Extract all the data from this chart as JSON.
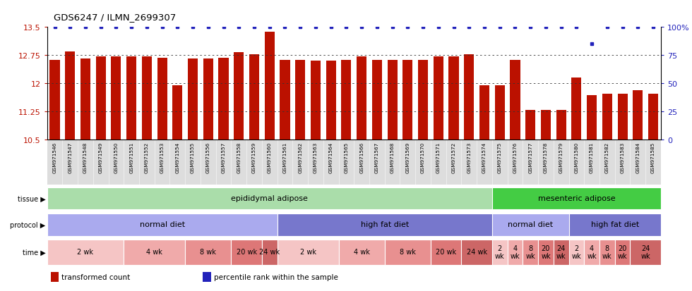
{
  "title": "GDS6247 / ILMN_2699307",
  "samples": [
    "GSM971546",
    "GSM971547",
    "GSM971548",
    "GSM971549",
    "GSM971550",
    "GSM971551",
    "GSM971552",
    "GSM971553",
    "GSM971554",
    "GSM971555",
    "GSM971556",
    "GSM971557",
    "GSM971558",
    "GSM971559",
    "GSM971560",
    "GSM971561",
    "GSM971562",
    "GSM971563",
    "GSM971564",
    "GSM971565",
    "GSM971566",
    "GSM971567",
    "GSM971568",
    "GSM971569",
    "GSM971570",
    "GSM971571",
    "GSM971572",
    "GSM971573",
    "GSM971574",
    "GSM971575",
    "GSM971576",
    "GSM971577",
    "GSM971578",
    "GSM971579",
    "GSM971580",
    "GSM971581",
    "GSM971582",
    "GSM971583",
    "GSM971584",
    "GSM971585"
  ],
  "bar_values": [
    12.62,
    12.85,
    12.65,
    12.72,
    12.72,
    12.72,
    12.72,
    12.68,
    11.95,
    12.65,
    12.65,
    12.68,
    12.82,
    12.78,
    13.37,
    12.62,
    12.62,
    12.6,
    12.6,
    12.62,
    12.72,
    12.62,
    12.62,
    12.62,
    12.62,
    12.72,
    12.72,
    12.78,
    11.95,
    11.95,
    12.62,
    11.28,
    11.28,
    11.28,
    12.15,
    11.68,
    11.72,
    11.72,
    11.82,
    11.72
  ],
  "percentile_values_y": [
    100,
    100,
    100,
    100,
    100,
    100,
    100,
    100,
    100,
    100,
    100,
    100,
    100,
    100,
    100,
    100,
    100,
    100,
    100,
    100,
    100,
    100,
    100,
    100,
    100,
    100,
    100,
    100,
    100,
    100,
    100,
    100,
    100,
    100,
    100,
    85,
    100,
    100,
    100,
    100
  ],
  "ymin": 10.5,
  "ymax": 13.5,
  "yticks": [
    10.5,
    11.25,
    12.0,
    12.75,
    13.5
  ],
  "ytick_labels": [
    "10.5",
    "11.25",
    "12",
    "12.75",
    "13.5"
  ],
  "right_ytick_pcts": [
    0,
    25,
    50,
    75,
    100
  ],
  "right_ytick_labels": [
    "0",
    "25",
    "50",
    "75",
    "100%"
  ],
  "bar_color": "#bb1100",
  "percentile_color": "#2222bb",
  "tissue_regions": [
    {
      "label": "epididymal adipose",
      "start": 0,
      "end": 29,
      "color": "#aaddaa"
    },
    {
      "label": "mesenteric adipose",
      "start": 29,
      "end": 40,
      "color": "#44cc44"
    }
  ],
  "protocol_regions": [
    {
      "label": "normal diet",
      "start": 0,
      "end": 15,
      "color": "#aaaaee"
    },
    {
      "label": "high fat diet",
      "start": 15,
      "end": 29,
      "color": "#7777cc"
    },
    {
      "label": "normal diet",
      "start": 29,
      "end": 34,
      "color": "#aaaaee"
    },
    {
      "label": "high fat diet",
      "start": 34,
      "end": 40,
      "color": "#7777cc"
    }
  ],
  "time_regions": [
    {
      "label": "2 wk",
      "start": 0,
      "end": 5,
      "color": "#f5c5c5"
    },
    {
      "label": "4 wk",
      "start": 5,
      "end": 9,
      "color": "#f0aaaa"
    },
    {
      "label": "8 wk",
      "start": 9,
      "end": 12,
      "color": "#e89090"
    },
    {
      "label": "20 wk",
      "start": 12,
      "end": 14,
      "color": "#dd7777"
    },
    {
      "label": "24 wk",
      "start": 14,
      "end": 15,
      "color": "#cc6666"
    },
    {
      "label": "2 wk",
      "start": 15,
      "end": 19,
      "color": "#f5c5c5"
    },
    {
      "label": "4 wk",
      "start": 19,
      "end": 22,
      "color": "#f0aaaa"
    },
    {
      "label": "8 wk",
      "start": 22,
      "end": 25,
      "color": "#e89090"
    },
    {
      "label": "20 wk",
      "start": 25,
      "end": 27,
      "color": "#dd7777"
    },
    {
      "label": "24 wk",
      "start": 27,
      "end": 29,
      "color": "#cc6666"
    },
    {
      "label": "2\nwk",
      "start": 29,
      "end": 30,
      "color": "#f5c5c5"
    },
    {
      "label": "4\nwk",
      "start": 30,
      "end": 31,
      "color": "#f0aaaa"
    },
    {
      "label": "8\nwk",
      "start": 31,
      "end": 32,
      "color": "#e89090"
    },
    {
      "label": "20\nwk",
      "start": 32,
      "end": 33,
      "color": "#dd7777"
    },
    {
      "label": "24\nwk",
      "start": 33,
      "end": 34,
      "color": "#cc6666"
    },
    {
      "label": "2\nwk",
      "start": 34,
      "end": 35,
      "color": "#f5c5c5"
    },
    {
      "label": "4\nwk",
      "start": 35,
      "end": 36,
      "color": "#f0aaaa"
    },
    {
      "label": "8\nwk",
      "start": 36,
      "end": 37,
      "color": "#e89090"
    },
    {
      "label": "20\nwk",
      "start": 37,
      "end": 38,
      "color": "#dd7777"
    },
    {
      "label": "24\nwk",
      "start": 38,
      "end": 40,
      "color": "#cc6666"
    }
  ],
  "legend_items": [
    {
      "label": "transformed count",
      "color": "#bb1100"
    },
    {
      "label": "percentile rank within the sample",
      "color": "#2222bb"
    }
  ],
  "bg_color": "#ffffff",
  "xticklabel_bg": "#dddddd"
}
